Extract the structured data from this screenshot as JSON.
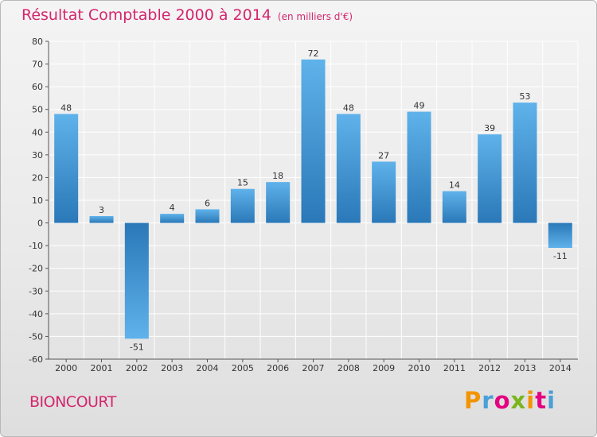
{
  "chart_data": {
    "type": "bar",
    "title": "Résultat Comptable 2000 à 2014",
    "subtitle": "(en milliers d'€)",
    "categories": [
      "2000",
      "2001",
      "2002",
      "2003",
      "2004",
      "2005",
      "2006",
      "2007",
      "2008",
      "2009",
      "2010",
      "2011",
      "2012",
      "2013",
      "2014"
    ],
    "values": [
      48,
      3,
      -51,
      4,
      6,
      15,
      18,
      72,
      48,
      27,
      49,
      14,
      39,
      53,
      -11
    ],
    "ylim": [
      -60,
      80
    ],
    "yticks": [
      80,
      70,
      60,
      50,
      40,
      30,
      20,
      10,
      0,
      -10,
      -20,
      -30,
      -40,
      -50,
      -60
    ],
    "xlabel": "",
    "ylabel": "",
    "grid": true
  },
  "footer": {
    "commune": "BIONCOURT",
    "brand": "Proxiti"
  },
  "colors": {
    "title": "#d4266e",
    "bar_light": "#5fb2ea",
    "bar_dark": "#2a78b8",
    "grid": "#ffffff",
    "brand_letters": [
      "#f29400",
      "#4a9fd8",
      "#e4007f",
      "#7ab51d",
      "#f29400",
      "#e4007f",
      "#4a9fd8"
    ]
  }
}
